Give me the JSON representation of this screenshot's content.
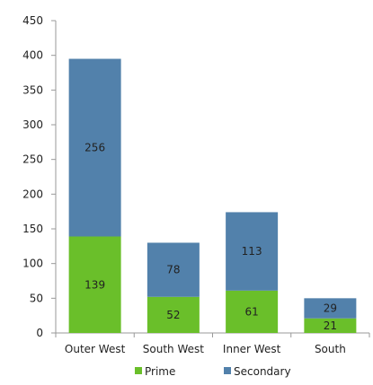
{
  "chart_data": {
    "type": "bar",
    "stacked": true,
    "categories": [
      "Outer West",
      "South West",
      "Inner West",
      "South"
    ],
    "series": [
      {
        "name": "Prime",
        "values": [
          139,
          52,
          61,
          21
        ],
        "color": "#6abf2a"
      },
      {
        "name": "Secondary",
        "values": [
          256,
          78,
          113,
          29
        ],
        "color": "#5281ab"
      }
    ],
    "yticks": [
      0,
      50,
      100,
      150,
      200,
      250,
      300,
      350,
      400,
      450
    ],
    "ylim": [
      0,
      450
    ],
    "grid": false,
    "legend_position": "bottom",
    "title": "",
    "xlabel": "",
    "ylabel": ""
  }
}
